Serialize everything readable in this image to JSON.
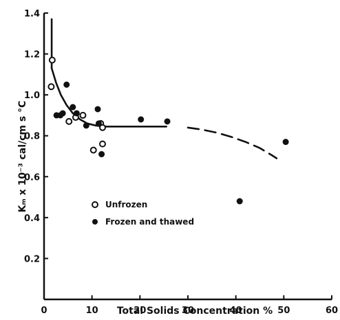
{
  "chart_data": {
    "type": "scatter",
    "title": "",
    "xlabel": "Total Solids Concentration %",
    "ylabel": "Kₘ x 10⁻³ cal/cm s °C",
    "xlim": [
      0,
      60
    ],
    "ylim": [
      0,
      1.4
    ],
    "xticks": [
      "0",
      "10",
      "20",
      "30",
      "40",
      "50",
      "60"
    ],
    "yticks": [
      "0.2",
      "0.4",
      "0.6",
      "0.8",
      "1.0",
      "1.2",
      "1.4"
    ],
    "grid": false,
    "legend_position": "center-left",
    "series": [
      {
        "name": "Unfrozen",
        "marker": "open-circle",
        "points": [
          {
            "x": 1.7,
            "y": 1.17
          },
          {
            "x": 1.5,
            "y": 1.04
          },
          {
            "x": 5.2,
            "y": 0.87
          },
          {
            "x": 6.6,
            "y": 0.89
          },
          {
            "x": 8.1,
            "y": 0.9
          },
          {
            "x": 10.3,
            "y": 0.73
          },
          {
            "x": 11.8,
            "y": 0.86
          },
          {
            "x": 12.2,
            "y": 0.84
          },
          {
            "x": 12.2,
            "y": 0.76
          }
        ]
      },
      {
        "name": "Frozen and thawed",
        "marker": "filled-circle",
        "points": [
          {
            "x": 2.6,
            "y": 0.9
          },
          {
            "x": 3.4,
            "y": 0.9
          },
          {
            "x": 3.9,
            "y": 0.91
          },
          {
            "x": 4.7,
            "y": 1.05
          },
          {
            "x": 6.0,
            "y": 0.94
          },
          {
            "x": 6.8,
            "y": 0.91
          },
          {
            "x": 8.8,
            "y": 0.85
          },
          {
            "x": 11.2,
            "y": 0.93
          },
          {
            "x": 11.4,
            "y": 0.86
          },
          {
            "x": 12.0,
            "y": 0.71
          },
          {
            "x": 20.2,
            "y": 0.88
          },
          {
            "x": 25.7,
            "y": 0.87
          },
          {
            "x": 40.8,
            "y": 0.48
          },
          {
            "x": 50.4,
            "y": 0.77
          }
        ]
      }
    ],
    "curves": [
      {
        "style": "solid",
        "points": [
          [
            1.6,
            1.13
          ],
          [
            2.5,
            1.06
          ],
          [
            3.5,
            1.0
          ],
          [
            4.7,
            0.95
          ],
          [
            6.0,
            0.91
          ],
          [
            7.5,
            0.88
          ],
          [
            9.0,
            0.86
          ],
          [
            10.8,
            0.85
          ],
          [
            12.5,
            0.845
          ],
          [
            18.0,
            0.845
          ],
          [
            25.5,
            0.845
          ]
        ]
      },
      {
        "style": "dashed",
        "points": [
          [
            30.0,
            0.84
          ],
          [
            33.0,
            0.83
          ],
          [
            36.0,
            0.815
          ],
          [
            39.0,
            0.795
          ],
          [
            42.0,
            0.77
          ],
          [
            45.0,
            0.74
          ],
          [
            47.5,
            0.705
          ],
          [
            48.5,
            0.69
          ]
        ]
      },
      {
        "style": "solid",
        "points": [
          [
            1.6,
            1.13
          ],
          [
            1.6,
            1.37
          ]
        ]
      }
    ]
  }
}
